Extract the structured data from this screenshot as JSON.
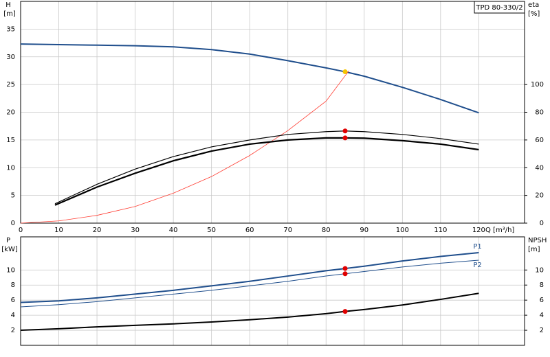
{
  "chart_data": [
    {
      "type": "line",
      "title": "TPD 80-330/2",
      "xlabel": "Q [m³/h]",
      "ylabel": "H",
      "yunit": "[m]",
      "y2label": "eta",
      "y2unit": "[%]",
      "xlim": [
        0,
        132
      ],
      "xticks": [
        0,
        10,
        20,
        30,
        40,
        50,
        60,
        70,
        80,
        90,
        100,
        110,
        120
      ],
      "xtick_labels": true,
      "ylim": [
        0,
        40
      ],
      "yticks": [
        0,
        5,
        10,
        15,
        20,
        25,
        30,
        35
      ],
      "y2lim": [
        0,
        160
      ],
      "y2ticks": [
        0,
        20,
        40,
        60,
        80,
        100
      ],
      "grid": true,
      "series": [
        {
          "color": "#1f4e8c",
          "width": 2,
          "x": [
            0,
            10,
            20,
            30,
            40,
            50,
            60,
            70,
            80,
            85,
            90,
            100,
            110,
            120
          ],
          "values": [
            32.3,
            32.2,
            32.1,
            32.0,
            31.8,
            31.3,
            30.5,
            29.3,
            28.0,
            27.3,
            26.5,
            24.5,
            22.3,
            19.9
          ],
          "highlight": 9,
          "highlight_color": "#f5c400"
        },
        {
          "color": "#ff3b30",
          "width": 0.8,
          "x": [
            0,
            10,
            20,
            30,
            40,
            50,
            60,
            70,
            80,
            86
          ],
          "values": [
            0,
            0.4,
            1.4,
            3.0,
            5.4,
            8.4,
            12.2,
            16.7,
            22.0,
            27.5
          ]
        },
        {
          "color": "#000000",
          "width": 1.2,
          "axis": "y2",
          "x": [
            9,
            20,
            30,
            40,
            50,
            60,
            70,
            80,
            85,
            90,
            100,
            110,
            120
          ],
          "values": [
            14,
            28,
            39,
            48,
            55,
            60,
            64,
            66,
            66.5,
            66,
            64,
            61,
            57
          ],
          "highlight": 8,
          "highlight_color": "#e00000"
        },
        {
          "color": "#000000",
          "width": 2.2,
          "axis": "y2",
          "x": [
            9,
            20,
            30,
            40,
            50,
            60,
            70,
            80,
            85,
            90,
            100,
            110,
            120
          ],
          "values": [
            13,
            26,
            36,
            45,
            52,
            57,
            60,
            61.5,
            61.5,
            61.3,
            59.5,
            57,
            53
          ],
          "highlight": 8,
          "highlight_color": "#e00000"
        }
      ]
    },
    {
      "type": "line",
      "ylabel": "P",
      "yunit": "[kW]",
      "y2label": "NPSH",
      "y2unit": "[m]",
      "xlim": [
        0,
        132
      ],
      "xticks": [
        0,
        10,
        20,
        30,
        40,
        50,
        60,
        70,
        80,
        90,
        100,
        110,
        120
      ],
      "xtick_labels": false,
      "ylim": [
        0,
        14.4
      ],
      "yticks": [
        2,
        4,
        6,
        8,
        10
      ],
      "y2lim": [
        0,
        14.4
      ],
      "y2ticks": [
        2,
        4,
        6,
        8,
        10
      ],
      "grid": true,
      "series": [
        {
          "name": "P1",
          "color": "#1f4e8c",
          "width": 2,
          "x": [
            0,
            10,
            20,
            30,
            40,
            50,
            60,
            70,
            80,
            85,
            90,
            100,
            110,
            120
          ],
          "values": [
            5.7,
            5.9,
            6.3,
            6.8,
            7.3,
            7.9,
            8.5,
            9.2,
            9.9,
            10.2,
            10.5,
            11.2,
            11.8,
            12.3
          ],
          "highlight": 9,
          "highlight_color": "#e00000"
        },
        {
          "name": "P2",
          "color": "#1f4e8c",
          "width": 1,
          "x": [
            0,
            10,
            20,
            30,
            40,
            50,
            60,
            70,
            80,
            85,
            90,
            100,
            110,
            120
          ],
          "values": [
            5.1,
            5.4,
            5.8,
            6.3,
            6.8,
            7.3,
            7.9,
            8.5,
            9.2,
            9.5,
            9.8,
            10.4,
            10.9,
            11.3
          ],
          "highlight": 9,
          "highlight_color": "#e00000"
        },
        {
          "color": "#000000",
          "width": 2,
          "axis": "y2",
          "x": [
            0,
            10,
            20,
            30,
            40,
            50,
            60,
            70,
            80,
            85,
            90,
            100,
            110,
            120
          ],
          "values": [
            2.0,
            2.2,
            2.45,
            2.65,
            2.85,
            3.1,
            3.4,
            3.75,
            4.2,
            4.5,
            4.75,
            5.35,
            6.1,
            6.9
          ],
          "highlight": 9,
          "highlight_color": "#e00000"
        }
      ]
    }
  ]
}
